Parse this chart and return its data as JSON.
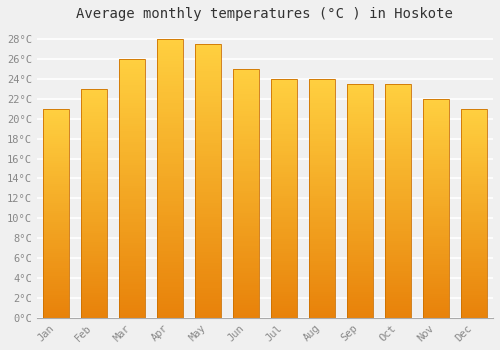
{
  "title": "Average monthly temperatures (°C ) in Hoskote",
  "months": [
    "Jan",
    "Feb",
    "Mar",
    "Apr",
    "May",
    "Jun",
    "Jul",
    "Aug",
    "Sep",
    "Oct",
    "Nov",
    "Dec"
  ],
  "temperatures": [
    21.0,
    23.0,
    26.0,
    28.0,
    27.5,
    25.0,
    24.0,
    24.0,
    23.5,
    23.5,
    22.0,
    21.0
  ],
  "bar_color_bottom": "#E8820A",
  "bar_color_top": "#FFD040",
  "bar_color_edge": "#CC7000",
  "ylim": [
    0,
    29
  ],
  "yticks": [
    0,
    2,
    4,
    6,
    8,
    10,
    12,
    14,
    16,
    18,
    20,
    22,
    24,
    26,
    28
  ],
  "ytick_labels": [
    "0°C",
    "2°C",
    "4°C",
    "6°C",
    "8°C",
    "10°C",
    "12°C",
    "14°C",
    "16°C",
    "18°C",
    "20°C",
    "22°C",
    "24°C",
    "26°C",
    "28°C"
  ],
  "background_color": "#f0f0f0",
  "plot_bg_color": "#f0f0f0",
  "grid_color": "#ffffff",
  "title_fontsize": 10,
  "tick_fontsize": 7.5,
  "font_family": "monospace",
  "tick_color": "#888888"
}
